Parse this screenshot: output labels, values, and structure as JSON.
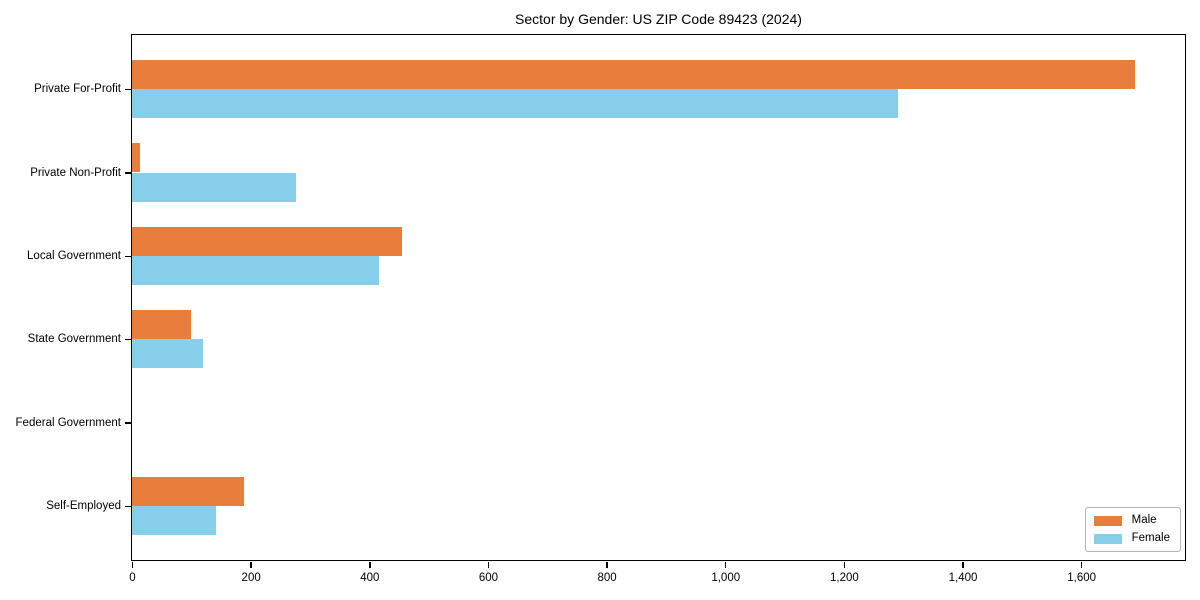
{
  "chart_data": {
    "type": "bar",
    "orientation": "horizontal",
    "title": "Sector by Gender: US ZIP Code 89423 (2024)",
    "categories": [
      "Private For-Profit",
      "Private Non-Profit",
      "Local Government",
      "State Government",
      "Federal Government",
      "Self-Employed"
    ],
    "series": [
      {
        "name": "Male",
        "color": "#E87E3C",
        "values": [
          1690,
          14,
          455,
          100,
          0,
          188
        ]
      },
      {
        "name": "Female",
        "color": "#87CEEB",
        "values": [
          1292,
          276,
          416,
          120,
          0,
          142
        ]
      }
    ],
    "xlabel": "",
    "ylabel": "",
    "xlim": [
      0,
      1775
    ],
    "xticks": [
      0,
      200,
      400,
      600,
      800,
      1000,
      1200,
      1400,
      1600
    ],
    "xtick_labels": [
      "0",
      "200",
      "400",
      "600",
      "800",
      "1,000",
      "1,200",
      "1,400",
      "1,600"
    ],
    "grid": false,
    "legend_position": "lower right",
    "bar_group_fraction": 0.35,
    "colors": {
      "axis": "#000000",
      "legend_border": "#b3b3b3",
      "background": "#ffffff"
    }
  }
}
